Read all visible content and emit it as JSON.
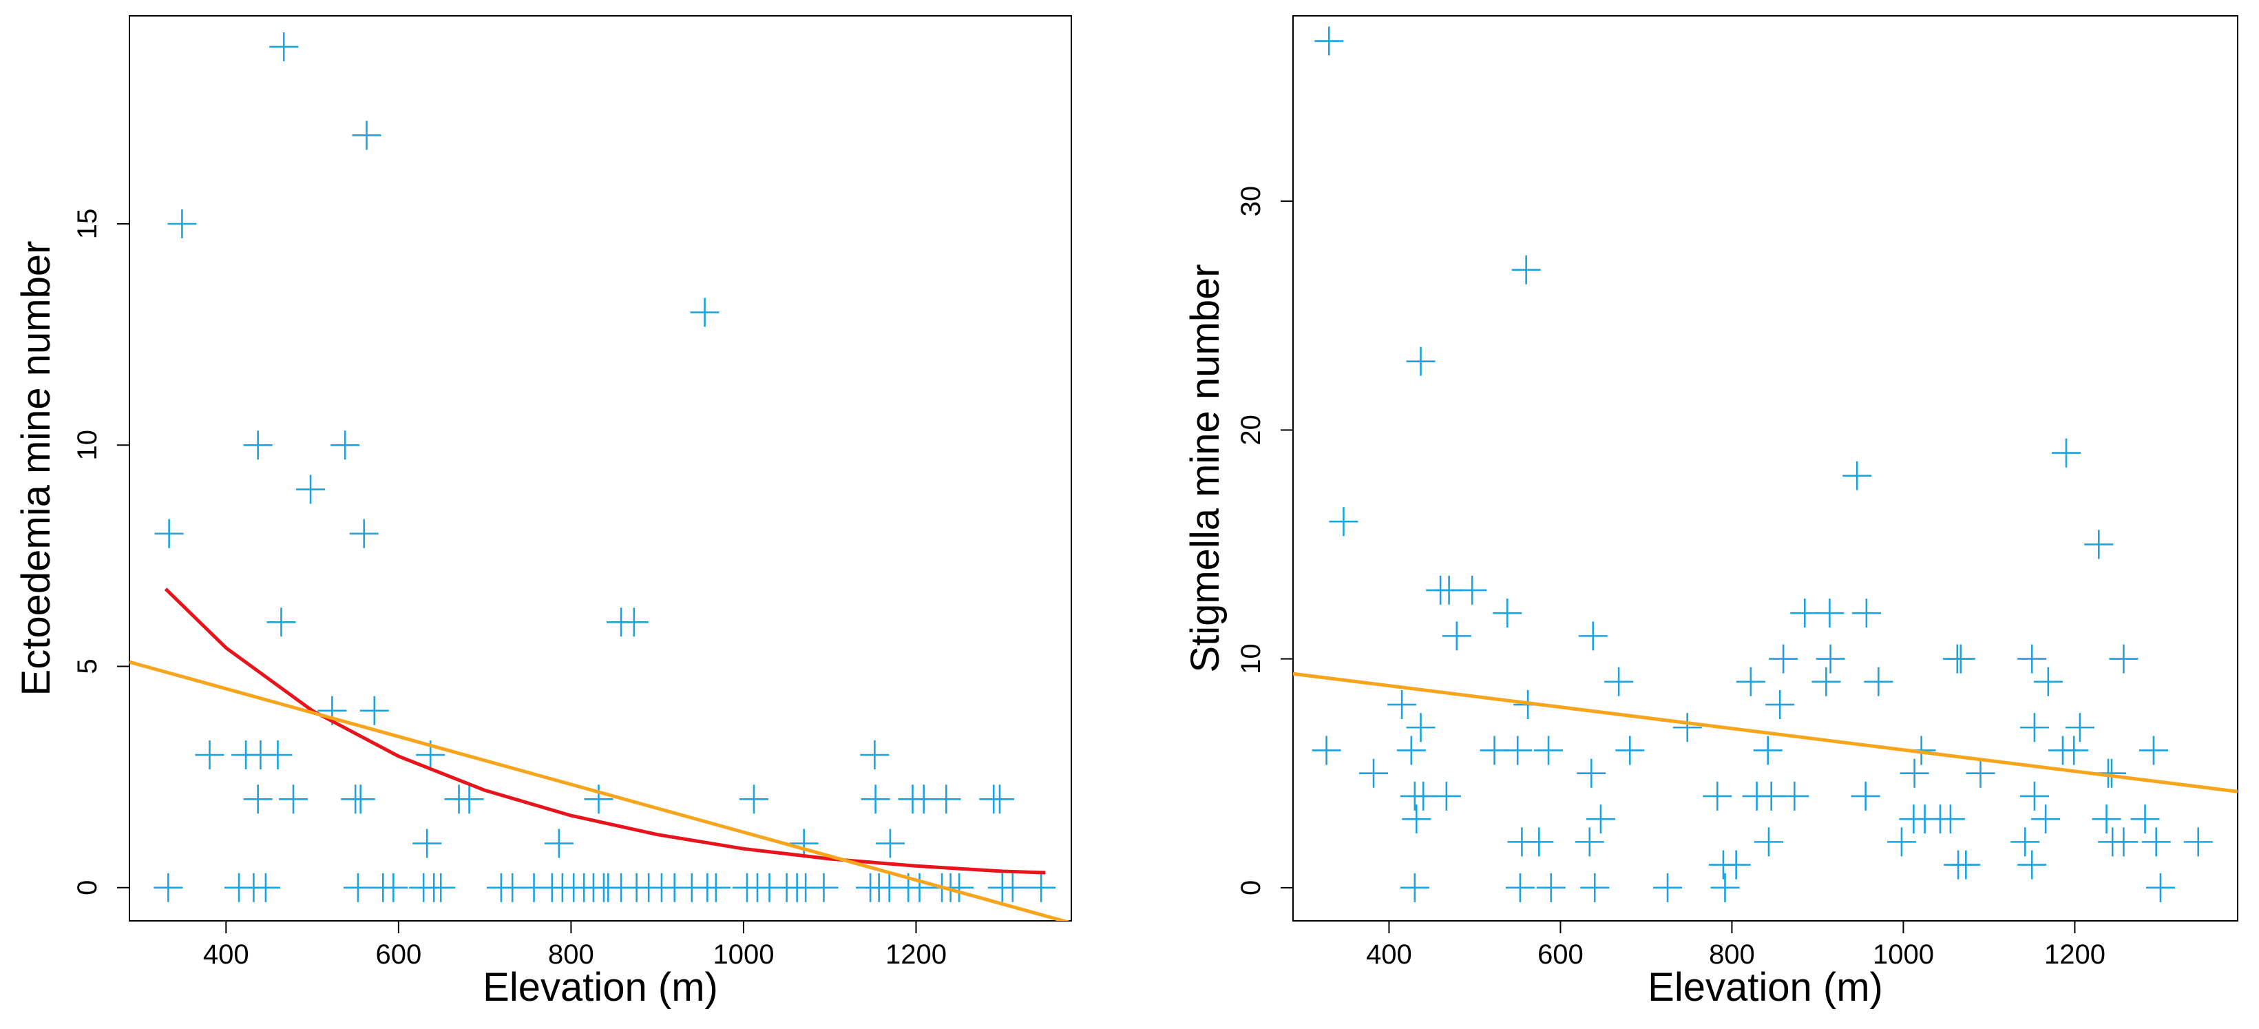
{
  "chart_data": [
    {
      "type": "scatter",
      "title": "",
      "xlabel": "Elevation (m)",
      "ylabel": "Ectoedemia mine number",
      "xlim": [
        288,
        1380
      ],
      "ylim": [
        -0.75,
        19.7
      ],
      "xticks": [
        400,
        600,
        800,
        1000,
        1200
      ],
      "yticks": [
        0,
        5,
        10,
        15
      ],
      "xtick_labels": [
        "400",
        "600",
        "800",
        "1000",
        "1200"
      ],
      "ytick_labels": [
        "0",
        "5",
        "10",
        "15"
      ],
      "grid": false,
      "marker": "+",
      "marker_color": "#1BA3E0",
      "points": [
        [
          467,
          19
        ],
        [
          563,
          17
        ],
        [
          349,
          15
        ],
        [
          955,
          13
        ],
        [
          437,
          10
        ],
        [
          538,
          10
        ],
        [
          498,
          9
        ],
        [
          334,
          8
        ],
        [
          560,
          8
        ],
        [
          464,
          6
        ],
        [
          858,
          6
        ],
        [
          873,
          6
        ],
        [
          523,
          4
        ],
        [
          572,
          4
        ],
        [
          381,
          3
        ],
        [
          423,
          3
        ],
        [
          440,
          3
        ],
        [
          460,
          3
        ],
        [
          637,
          3
        ],
        [
          1152,
          3
        ],
        [
          437,
          2
        ],
        [
          478,
          2
        ],
        [
          550,
          2
        ],
        [
          556,
          2
        ],
        [
          670,
          2
        ],
        [
          682,
          2
        ],
        [
          832,
          2
        ],
        [
          1012,
          2
        ],
        [
          1153,
          2
        ],
        [
          1196,
          2
        ],
        [
          1209,
          2
        ],
        [
          1235,
          2
        ],
        [
          1290,
          2
        ],
        [
          1297,
          2
        ],
        [
          633,
          1
        ],
        [
          786,
          1
        ],
        [
          1070,
          1
        ],
        [
          1170,
          1
        ],
        [
          333,
          0
        ],
        [
          415,
          0
        ],
        [
          432,
          0
        ],
        [
          446,
          0
        ],
        [
          553,
          0
        ],
        [
          582,
          0
        ],
        [
          594,
          0
        ],
        [
          629,
          0
        ],
        [
          641,
          0
        ],
        [
          649,
          0
        ],
        [
          719,
          0
        ],
        [
          732,
          0
        ],
        [
          757,
          0
        ],
        [
          778,
          0
        ],
        [
          790,
          0
        ],
        [
          803,
          0
        ],
        [
          815,
          0
        ],
        [
          826,
          0
        ],
        [
          838,
          0
        ],
        [
          843,
          0
        ],
        [
          858,
          0
        ],
        [
          876,
          0
        ],
        [
          890,
          0
        ],
        [
          905,
          0
        ],
        [
          920,
          0
        ],
        [
          940,
          0
        ],
        [
          958,
          0
        ],
        [
          968,
          0
        ],
        [
          1004,
          0
        ],
        [
          1016,
          0
        ],
        [
          1030,
          0
        ],
        [
          1050,
          0
        ],
        [
          1062,
          0
        ],
        [
          1072,
          0
        ],
        [
          1093,
          0
        ],
        [
          1147,
          0
        ],
        [
          1157,
          0
        ],
        [
          1169,
          0
        ],
        [
          1191,
          0
        ],
        [
          1204,
          0
        ],
        [
          1230,
          0
        ],
        [
          1240,
          0
        ],
        [
          1250,
          0
        ],
        [
          1300,
          0
        ],
        [
          1312,
          0
        ],
        [
          1345,
          0
        ]
      ],
      "lines": [
        {
          "name": "exponential fit",
          "color": "#E8141C",
          "x": [
            330,
            400,
            500,
            600,
            700,
            800,
            900,
            1000,
            1100,
            1200,
            1300,
            1350
          ],
          "y": [
            6.75,
            5.42,
            4.0,
            2.97,
            2.2,
            1.63,
            1.2,
            0.88,
            0.65,
            0.49,
            0.37,
            0.34
          ]
        },
        {
          "name": "linear fit",
          "color": "#F7A51C",
          "x": [
            288,
            1380
          ],
          "y": [
            5.1,
            -0.8
          ]
        }
      ]
    },
    {
      "type": "scatter",
      "title": "",
      "xlabel": "Elevation (m)",
      "ylabel": "Stigmella mine number",
      "xlim": [
        288,
        1390
      ],
      "ylim": [
        -1.45,
        38.1
      ],
      "xticks": [
        400,
        600,
        800,
        1000,
        1200
      ],
      "yticks": [
        0,
        10,
        20,
        30
      ],
      "xtick_labels": [
        "400",
        "600",
        "800",
        "1000",
        "1200"
      ],
      "ytick_labels": [
        "0",
        "10",
        "20",
        "30"
      ],
      "grid": false,
      "marker": "+",
      "marker_color": "#1BA3E0",
      "points": [
        [
          330,
          37
        ],
        [
          560,
          27
        ],
        [
          437,
          23
        ],
        [
          946,
          18
        ],
        [
          1190,
          19
        ],
        [
          347,
          16
        ],
        [
          1228,
          15
        ],
        [
          460,
          13
        ],
        [
          470,
          13
        ],
        [
          497,
          13
        ],
        [
          538,
          12
        ],
        [
          885,
          12
        ],
        [
          914,
          12
        ],
        [
          957,
          12
        ],
        [
          479,
          11
        ],
        [
          638,
          11
        ],
        [
          860,
          10
        ],
        [
          915,
          10
        ],
        [
          1063,
          10
        ],
        [
          1067,
          10
        ],
        [
          1150,
          10
        ],
        [
          1257,
          10
        ],
        [
          668,
          9
        ],
        [
          822,
          9
        ],
        [
          910,
          9
        ],
        [
          971,
          9
        ],
        [
          1169,
          9
        ],
        [
          415,
          8
        ],
        [
          562,
          8
        ],
        [
          856,
          8
        ],
        [
          437,
          7
        ],
        [
          748,
          7
        ],
        [
          1153,
          7
        ],
        [
          1206,
          7
        ],
        [
          327,
          6
        ],
        [
          426,
          6
        ],
        [
          523,
          6
        ],
        [
          550,
          6
        ],
        [
          586,
          6
        ],
        [
          681,
          6
        ],
        [
          842,
          6
        ],
        [
          1021,
          6
        ],
        [
          1186,
          6
        ],
        [
          1199,
          6
        ],
        [
          1292,
          6
        ],
        [
          382,
          5
        ],
        [
          636,
          5
        ],
        [
          1013,
          5
        ],
        [
          1090,
          5
        ],
        [
          1239,
          5
        ],
        [
          1243,
          5
        ],
        [
          430,
          4
        ],
        [
          440,
          4
        ],
        [
          467,
          4
        ],
        [
          783,
          4
        ],
        [
          829,
          4
        ],
        [
          846,
          4
        ],
        [
          873,
          4
        ],
        [
          956,
          4
        ],
        [
          1153,
          4
        ],
        [
          432,
          3
        ],
        [
          647,
          3
        ],
        [
          1012,
          3
        ],
        [
          1025,
          3
        ],
        [
          1043,
          3
        ],
        [
          1055,
          3
        ],
        [
          1166,
          3
        ],
        [
          1237,
          3
        ],
        [
          1282,
          3
        ],
        [
          555,
          2
        ],
        [
          575,
          2
        ],
        [
          634,
          2
        ],
        [
          843,
          2
        ],
        [
          998,
          2
        ],
        [
          1142,
          2
        ],
        [
          1244,
          2
        ],
        [
          1257,
          2
        ],
        [
          1295,
          2
        ],
        [
          1344,
          2
        ],
        [
          790,
          1
        ],
        [
          805,
          1
        ],
        [
          1064,
          1
        ],
        [
          1073,
          1
        ],
        [
          1150,
          1
        ],
        [
          430,
          0
        ],
        [
          553,
          0
        ],
        [
          589,
          0
        ],
        [
          640,
          0
        ],
        [
          725,
          0
        ],
        [
          792,
          0
        ],
        [
          1300,
          0
        ]
      ],
      "lines": [
        {
          "name": "linear fit",
          "color": "#F7A51C",
          "x": [
            288,
            1390
          ],
          "y": [
            9.35,
            4.2
          ]
        }
      ]
    }
  ]
}
